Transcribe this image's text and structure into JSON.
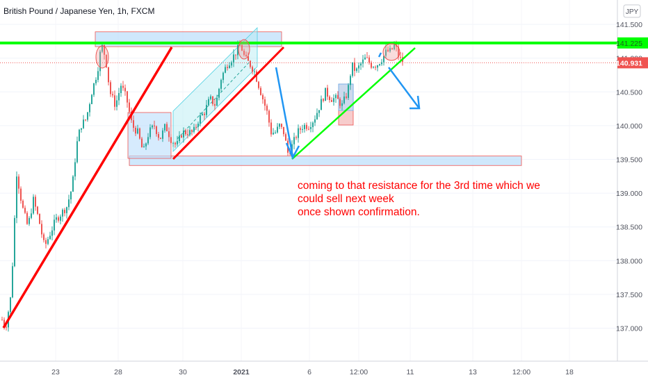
{
  "header": {
    "symbol_title": "British Pound / Japanese Yen, 1h, FXCM",
    "currency_badge": "JPY"
  },
  "colors": {
    "up": "#26a69a",
    "down": "#ef5350",
    "trendline_red": "#ff0000",
    "resistance_green": "#00ff00",
    "arrow_blue": "#2196f3",
    "annotation_text": "#ff0000",
    "price_tag": "#ef5350",
    "zone_fill": "#bbdefb",
    "channel_fill": "#b2ebf2"
  },
  "chart_data": {
    "type": "candlestick",
    "ylim": [
      136.7,
      141.7
    ],
    "y_ticks": [
      "141.500",
      "141.000",
      "140.500",
      "140.000",
      "139.500",
      "139.000",
      "138.500",
      "138.000",
      "137.500",
      "137.000"
    ],
    "x_ticks": [
      "23",
      "28",
      "30",
      "2021",
      "6",
      "12:00",
      "11",
      "13",
      "12:00",
      "18"
    ],
    "bold_x_tick": "2021",
    "current_price": "140.931",
    "resistance_price": "141.225",
    "price_path": [
      [
        0,
        137.2
      ],
      [
        8,
        137.0
      ],
      [
        16,
        137.5
      ],
      [
        24,
        139.3
      ],
      [
        32,
        138.8
      ],
      [
        40,
        138.5
      ],
      [
        48,
        138.9
      ],
      [
        56,
        138.6
      ],
      [
        64,
        138.2
      ],
      [
        72,
        138.4
      ],
      [
        80,
        138.6
      ],
      [
        88,
        138.7
      ],
      [
        96,
        138.8
      ],
      [
        104,
        139.1
      ],
      [
        110,
        139.7
      ],
      [
        116,
        140.0
      ],
      [
        124,
        140.1
      ],
      [
        132,
        140.5
      ],
      [
        140,
        140.8
      ],
      [
        146,
        141.2
      ],
      [
        152,
        141.0
      ],
      [
        158,
        140.5
      ],
      [
        166,
        140.3
      ],
      [
        174,
        140.6
      ],
      [
        182,
        140.4
      ],
      [
        190,
        140.0
      ],
      [
        198,
        139.9
      ],
      [
        206,
        139.6
      ],
      [
        214,
        139.9
      ],
      [
        222,
        140.0
      ],
      [
        230,
        139.8
      ],
      [
        238,
        140.0
      ],
      [
        246,
        139.8
      ],
      [
        254,
        139.7
      ],
      [
        262,
        139.9
      ],
      [
        270,
        139.9
      ],
      [
        278,
        139.9
      ],
      [
        286,
        140.1
      ],
      [
        294,
        140.2
      ],
      [
        302,
        140.4
      ],
      [
        310,
        140.3
      ],
      [
        318,
        140.7
      ],
      [
        326,
        140.9
      ],
      [
        334,
        141.0
      ],
      [
        340,
        141.1
      ],
      [
        346,
        141.2
      ],
      [
        352,
        141.0
      ],
      [
        360,
        140.9
      ],
      [
        366,
        140.8
      ],
      [
        372,
        140.6
      ],
      [
        378,
        140.4
      ],
      [
        384,
        140.2
      ],
      [
        390,
        139.9
      ],
      [
        396,
        139.9
      ],
      [
        402,
        140.0
      ],
      [
        408,
        139.9
      ],
      [
        414,
        139.6
      ],
      [
        420,
        139.7
      ],
      [
        428,
        139.9
      ],
      [
        436,
        140.0
      ],
      [
        444,
        140.0
      ],
      [
        452,
        140.1
      ],
      [
        460,
        140.3
      ],
      [
        468,
        140.5
      ],
      [
        476,
        140.4
      ],
      [
        484,
        140.4
      ],
      [
        492,
        140.3
      ],
      [
        500,
        140.5
      ],
      [
        506,
        140.9
      ],
      [
        512,
        140.8
      ],
      [
        518,
        140.9
      ],
      [
        526,
        141.0
      ],
      [
        534,
        140.9
      ],
      [
        542,
        140.9
      ],
      [
        550,
        141.0
      ],
      [
        556,
        141.1
      ],
      [
        562,
        141.1
      ],
      [
        568,
        141.2
      ],
      [
        574,
        141.0
      ],
      [
        580,
        140.95
      ]
    ],
    "resistance_zones": [
      {
        "from_price": 141.17,
        "to_price": 141.39
      },
      {
        "from_price": 139.41,
        "to_price": 139.55
      }
    ],
    "annotation_lines": [
      "coming to that resistance for the 3rd time which we",
      "could sell next week",
      "once shown confirmation."
    ]
  }
}
